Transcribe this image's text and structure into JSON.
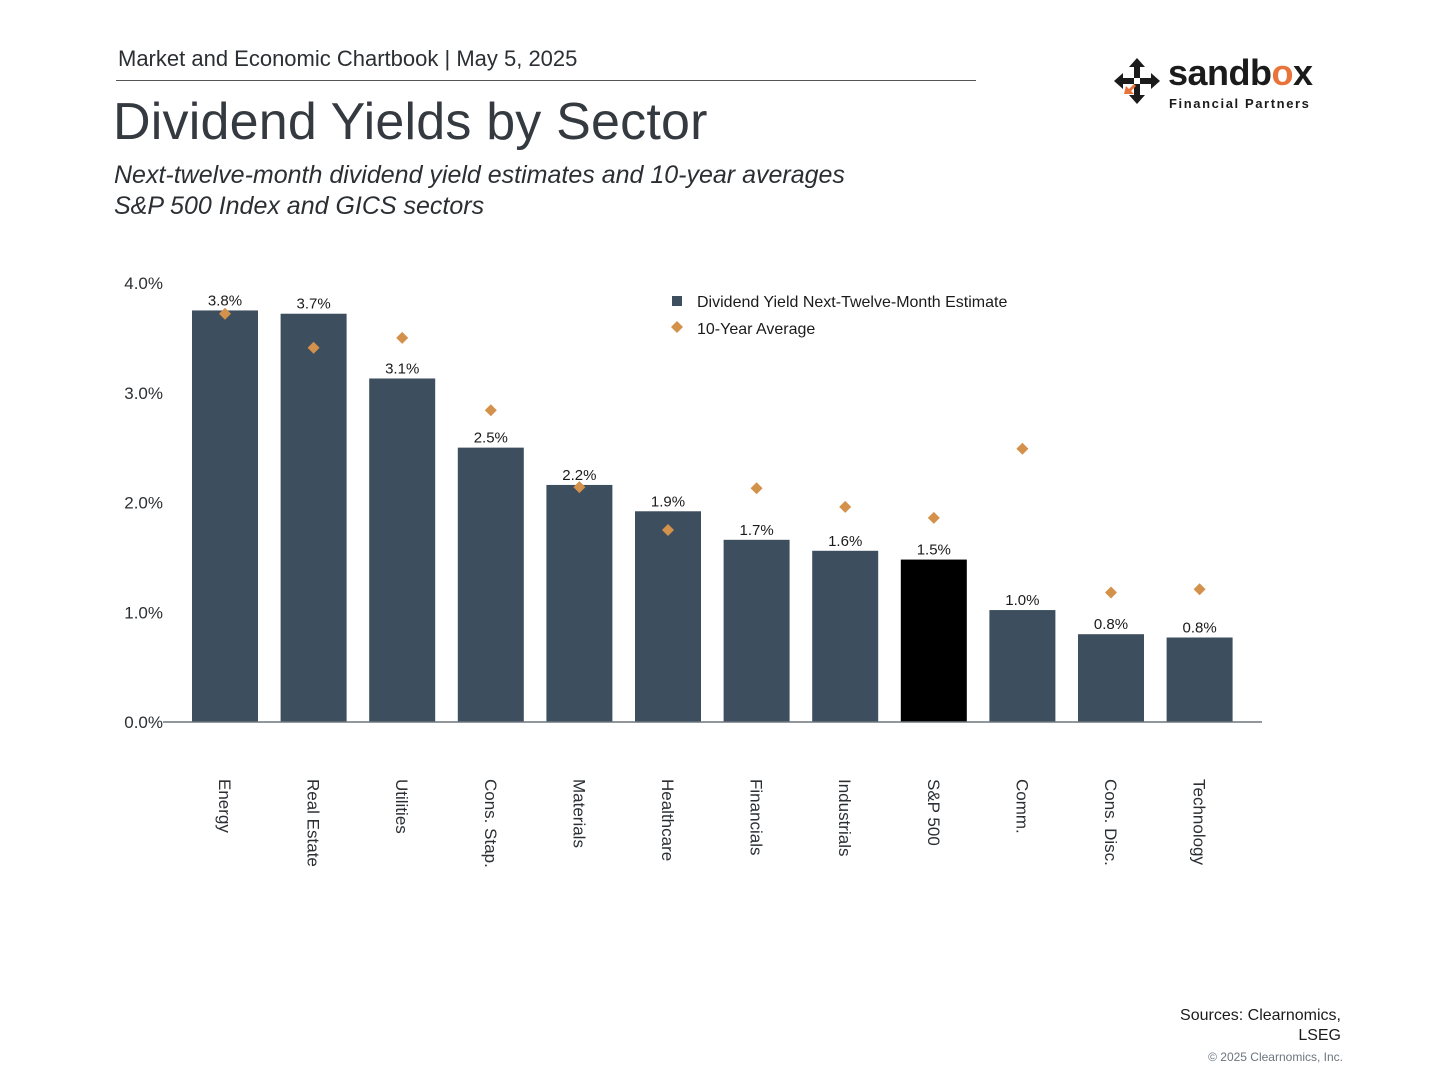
{
  "header": {
    "chartbook_line": "Market and Economic Chartbook | May 5, 2025",
    "title": "Dividend Yields by Sector",
    "subtitle_line1": "Next-twelve-month dividend yield estimates and 10-year averages",
    "subtitle_line2": "S&P 500 Index and GICS sectors"
  },
  "logo": {
    "word_main": "sandb",
    "word_accent": "o",
    "word_end": "x",
    "sub": "Financial Partners",
    "accent_color": "#e8743b"
  },
  "chart_data": {
    "type": "bar",
    "categories": [
      "Energy",
      "Real Estate",
      "Utilities",
      "Cons. Stap.",
      "Materials",
      "Healthcare",
      "Financials",
      "Industrials",
      "S&P 500",
      "Comm.",
      "Cons. Disc.",
      "Technology"
    ],
    "series": [
      {
        "name": "Dividend Yield Next-Twelve-Month Estimate",
        "type": "bar",
        "color": "#3d4f5f",
        "highlight": {
          "category": "S&P 500",
          "color": "#000000"
        },
        "values": [
          3.75,
          3.72,
          3.13,
          2.5,
          2.16,
          1.92,
          1.66,
          1.56,
          1.48,
          1.02,
          0.8,
          0.77
        ],
        "labels": [
          "3.8%",
          "3.7%",
          "3.1%",
          "2.5%",
          "2.2%",
          "1.9%",
          "1.7%",
          "1.6%",
          "1.5%",
          "1.0%",
          "0.8%",
          "0.8%"
        ]
      },
      {
        "name": "10-Year Average",
        "type": "scatter",
        "marker": "diamond",
        "color": "#d4914b",
        "values": [
          3.72,
          3.41,
          3.5,
          2.84,
          2.14,
          1.75,
          2.13,
          1.96,
          1.86,
          2.49,
          1.18,
          1.21
        ]
      }
    ],
    "ylim": [
      0,
      4
    ],
    "yticks": [
      0,
      1,
      2,
      3,
      4
    ],
    "ytick_labels": [
      "0.0%",
      "1.0%",
      "2.0%",
      "3.0%",
      "4.0%"
    ],
    "xlabel": "",
    "ylabel": "",
    "grid": false,
    "legend_position": "top-center"
  },
  "footer": {
    "sources": "Sources: Clearnomics, LSEG",
    "copyright": "© 2025 Clearnomics, Inc."
  }
}
